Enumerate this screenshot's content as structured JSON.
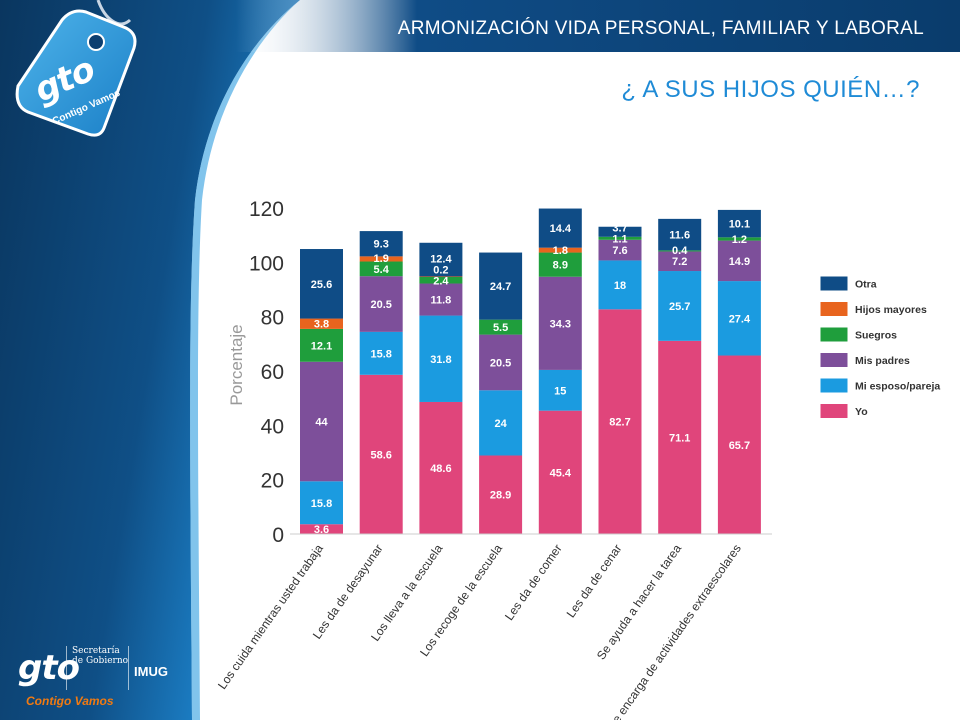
{
  "header": {
    "title": "ARMONIZACIÓN VIDA PERSONAL, FAMILIAR Y LABORAL"
  },
  "slide": {
    "title": "¿ A SUS HIJOS QUIÉN…?"
  },
  "logo": {
    "text": "gto",
    "tagline": "Contigo Vamos"
  },
  "footer_logo": {
    "gto": "gto",
    "secretaria_line1": "Secretaría",
    "secretaria_line2": "de Gobierno",
    "imug": "IMUG",
    "tagline": "Contigo Vamos"
  },
  "colors": {
    "sidebar_dark": "#0b3b6e",
    "sidebar_light": "#1f8bd6",
    "header_bar": "#0d4f8f",
    "title_blue": "#1f8bd6"
  },
  "chart_data": {
    "type": "bar",
    "stacked": true,
    "ylabel": "Porcentaje",
    "ylim": [
      0,
      120
    ],
    "yticks": [
      0,
      20,
      40,
      60,
      80,
      100,
      120
    ],
    "grid": false,
    "legend_position": "right",
    "categories": [
      "Los cuida mientras usted trabaja",
      "Les da de desayunar",
      "Los lleva a la escuela",
      "Los recoge de la escuela",
      "Les da de comer",
      "Les da de cenar",
      "Se ayuda a hacer la tarea",
      "Se encarga de actividades extraescolares"
    ],
    "series": [
      {
        "name": "Yo",
        "color": "#e0457b",
        "values": [
          3.6,
          58.6,
          48.6,
          28.9,
          45.4,
          82.7,
          71.1,
          65.7
        ],
        "labels": [
          "3.6",
          "58.6",
          "48.6",
          "28.9",
          "45.4",
          "82.7",
          "71.1",
          "65.7"
        ]
      },
      {
        "name": "Mi esposo/pareja",
        "color": "#1b9be0",
        "values": [
          15.8,
          15.8,
          31.8,
          24,
          15,
          18,
          25.7,
          27.4
        ],
        "labels": [
          "15.8",
          "15.8",
          "31.8",
          "24",
          "15",
          "18",
          "25.7",
          "27.4"
        ]
      },
      {
        "name": "Mis padres",
        "color": "#7d4f9a",
        "values": [
          44,
          20.5,
          11.8,
          20.5,
          34.3,
          7.6,
          7.2,
          14.9
        ],
        "labels": [
          "44",
          "20.5",
          "11.8",
          "20.5",
          "34.3",
          "7.6",
          "7.2",
          "14.9"
        ]
      },
      {
        "name": "Suegros",
        "color": "#1f9e3c",
        "values": [
          12.1,
          5.4,
          2.4,
          5.5,
          8.9,
          1.1,
          0.4,
          1.2
        ],
        "labels": [
          "12.1",
          "5.4",
          "2.4",
          "5.5",
          "8.9",
          "1.1",
          "0.4",
          "1.2"
        ]
      },
      {
        "name": "Hijos mayores",
        "color": "#e8641e",
        "values": [
          3.8,
          1.9,
          0.2,
          0,
          1.8,
          0,
          0,
          0
        ],
        "labels": [
          "3.8",
          "1.9",
          "0.2",
          "",
          "1.8",
          "",
          "",
          ""
        ]
      },
      {
        "name": "Otra",
        "color": "#0f4c86",
        "values": [
          25.6,
          9.3,
          12.4,
          24.7,
          14.4,
          3.7,
          11.6,
          10.1
        ],
        "labels": [
          "25.6",
          "9.3",
          "12.4",
          "24.7",
          "14.4",
          "3.7",
          "11.6",
          "10.1"
        ]
      }
    ],
    "legend_order": [
      "Otra",
      "Hijos mayores",
      "Suegros",
      "Mis padres",
      "Mi esposo/pareja",
      "Yo"
    ]
  }
}
